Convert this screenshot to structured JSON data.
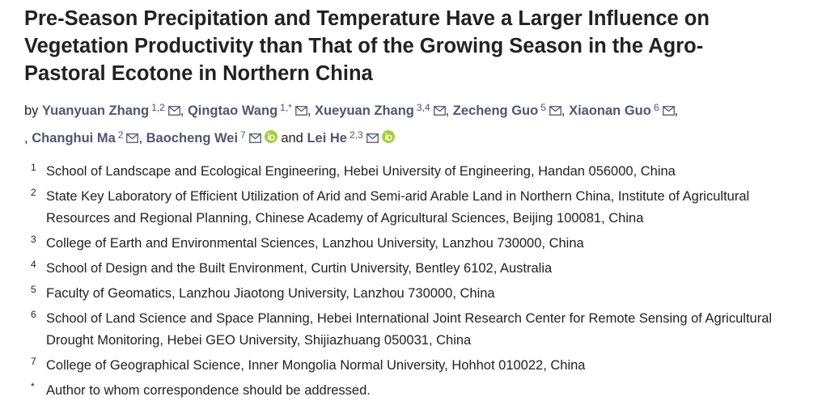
{
  "title": "Pre-Season Precipitation and Temperature Have a Larger Influence on Vegetation Productivity than That of the Growing Season in the Agro-Pastoral Ecotone in Northern China",
  "authors": [
    {
      "before": "by",
      "name": "Yuanyuan Zhang",
      "sup": "1,2",
      "orcid": false
    },
    {
      "before": ",",
      "name": "Qingtao Wang",
      "sup": "1,*",
      "orcid": false
    },
    {
      "before": ",",
      "name": "Xueyuan Zhang",
      "sup": "3,4",
      "orcid": false
    },
    {
      "before": ",",
      "name": "Zecheng Guo",
      "sup": "5",
      "orcid": false
    },
    {
      "before": ",",
      "name": "Xiaonan Guo",
      "sup": "6",
      "orcid": false
    },
    {
      "before": ",",
      "name": "Changhui Ma",
      "sup": "2",
      "orcid": false
    },
    {
      "before": ",",
      "name": "Baocheng Wei",
      "sup": "7",
      "orcid": true
    },
    {
      "before": "and",
      "name": "Lei He",
      "sup": "2,3",
      "orcid": true
    }
  ],
  "after_authors": ",",
  "affiliations": [
    {
      "marker": "1",
      "text": "School of Landscape and Ecological Engineering, Hebei University of Engineering, Handan 056000, China"
    },
    {
      "marker": "2",
      "text": "State Key Laboratory of Efficient Utilization of Arid and Semi-arid Arable Land in Northern China, Institute of Agricultural Resources and Regional Planning, Chinese Academy of Agricultural Sciences, Beijing 100081, China"
    },
    {
      "marker": "3",
      "text": "College of Earth and Environmental Sciences, Lanzhou University, Lanzhou 730000, China"
    },
    {
      "marker": "4",
      "text": "School of Design and the Built Environment, Curtin University, Bentley 6102, Australia"
    },
    {
      "marker": "5",
      "text": "Faculty of Geomatics, Lanzhou Jiaotong University, Lanzhou 730000, China"
    },
    {
      "marker": "6",
      "text": "School of Land Science and Space Planning, Hebei International Joint Research Center for Remote Sensing of Agricultural Drought Monitoring, Hebei GEO University, Shijiazhuang 050031, China"
    },
    {
      "marker": "7",
      "text": "College of Geographical Science, Inner Mongolia Normal University, Hohhot 010022, China"
    },
    {
      "marker": "*",
      "text": "Author to whom correspondence should be addressed."
    }
  ]
}
